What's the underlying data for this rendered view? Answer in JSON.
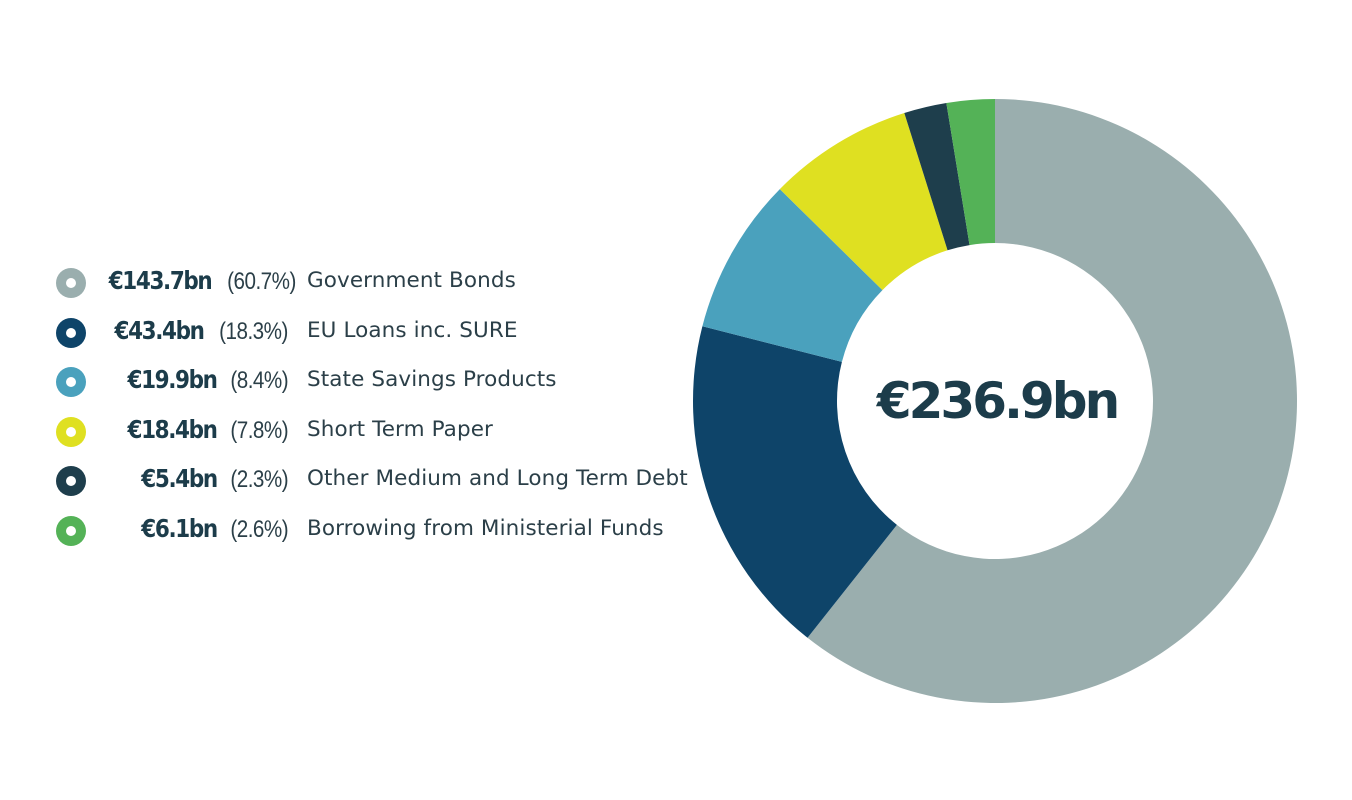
{
  "chart_data": {
    "type": "pie",
    "center_label": "€236.9bn",
    "slices": [
      {
        "name": "Government Bonds",
        "value": 143.7,
        "value_label": "€143.7bn",
        "percent": 60.7,
        "percent_label": "(60.7%)",
        "color": "#9aaeae"
      },
      {
        "name": "EU Loans inc. SURE",
        "value": 43.4,
        "value_label": "€43.4bn",
        "percent": 18.3,
        "percent_label": "(18.3%)",
        "color": "#0e4469"
      },
      {
        "name": "State Savings Products",
        "value": 19.9,
        "value_label": "€19.9bn",
        "percent": 8.4,
        "percent_label": "(8.4%)",
        "color": "#4aa1bd"
      },
      {
        "name": "Short Term Paper",
        "value": 18.4,
        "value_label": "€18.4bn",
        "percent": 7.8,
        "percent_label": "(7.8%)",
        "color": "#dfe021"
      },
      {
        "name": "Other Medium and Long Term Debt",
        "value": 5.4,
        "value_label": "€5.4bn",
        "percent": 2.3,
        "percent_label": "(2.3%)",
        "color": "#1e3e4c"
      },
      {
        "name": "Borrowing from Ministerial Funds",
        "value": 6.1,
        "value_label": "€6.1bn",
        "percent": 2.6,
        "percent_label": "(2.6%)",
        "color": "#54b257"
      }
    ],
    "legend_position": "left",
    "slice_order": "clockwise-from-top-reversed"
  }
}
